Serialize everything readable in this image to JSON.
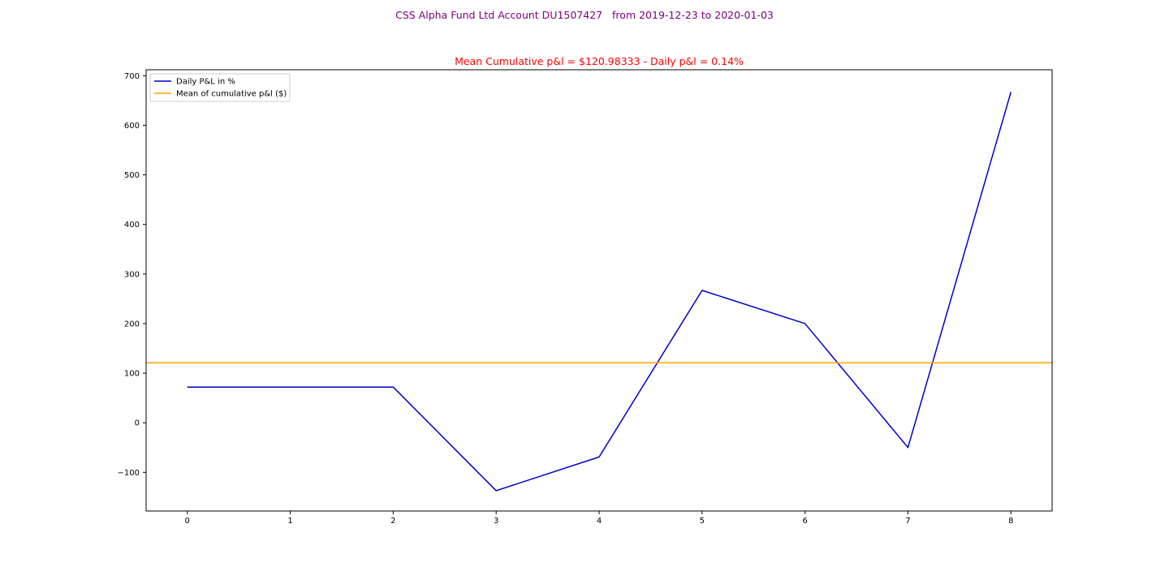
{
  "figure": {
    "suptitle": "CSS Alpha Fund Ltd Account DU1507427   from 2019-12-23 to 2020-01-03"
  },
  "colors": {
    "suptitle": "#800080",
    "title": "#ff0000",
    "series_daily": "#0000cd",
    "series_mean": "#ffa500"
  },
  "chart_data": {
    "type": "line",
    "title": "Mean Cumulative p&l = $120.98333 - Daily p&l = 0.14%",
    "xlabel": "",
    "ylabel": "",
    "x": [
      0,
      1,
      2,
      3,
      4,
      5,
      6,
      7,
      8
    ],
    "xlim": [
      -0.4,
      8.4
    ],
    "ylim": [
      -178,
      712
    ],
    "xticks": [
      0,
      1,
      2,
      3,
      4,
      5,
      6,
      7,
      8
    ],
    "yticks": [
      -100,
      0,
      100,
      200,
      300,
      400,
      500,
      600,
      700
    ],
    "ytick_labels": [
      "−100",
      "0",
      "100",
      "200",
      "300",
      "400",
      "500",
      "600",
      "700"
    ],
    "grid": false,
    "legend_position": "upper-left",
    "series": [
      {
        "name": "Daily P&L in %",
        "kind": "line",
        "color": "#0000cd",
        "values": [
          72,
          72,
          72,
          -137,
          -69,
          267,
          200,
          -50,
          667
        ]
      },
      {
        "name": "Mean of cumulative p&l ($)",
        "kind": "hline",
        "color": "#ffa500",
        "value": 120.98333
      }
    ]
  }
}
